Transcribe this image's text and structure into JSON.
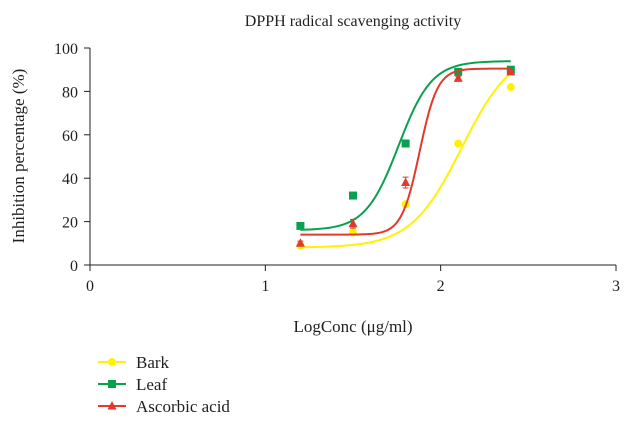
{
  "chart_data": {
    "type": "scatter",
    "title": "DPPH radical scavenging activity",
    "xlabel": "LogConc (μg/ml)",
    "ylabel": "Inhibition percentage (%)",
    "xlim": [
      0,
      3
    ],
    "ylim": [
      0,
      100
    ],
    "xticks": [
      "0",
      "1",
      "2",
      "3"
    ],
    "yticks": [
      "0",
      "20",
      "40",
      "60",
      "80",
      "100"
    ],
    "grid": false,
    "legend_position": "bottom-left",
    "series": [
      {
        "name": "Bark",
        "color": "#fff200",
        "marker": "circle",
        "x": [
          1.2,
          1.5,
          1.8,
          2.1,
          2.4
        ],
        "y": [
          9,
          15,
          28,
          56,
          82
        ],
        "error": [
          0.6,
          0.8,
          1.0,
          1.0,
          1.0
        ],
        "fit": {
          "bottom": 8,
          "top": 100,
          "ec50_log": 2.12,
          "hill": 3.0
        }
      },
      {
        "name": "Leaf",
        "color": "#0aa14e",
        "marker": "square",
        "x": [
          1.2,
          1.5,
          1.8,
          2.1,
          2.4
        ],
        "y": [
          18,
          32,
          56,
          89,
          90
        ],
        "error": [
          0.8,
          1.0,
          1.2,
          1.2,
          1.0
        ],
        "fit": {
          "bottom": 16,
          "top": 94,
          "ec50_log": 1.76,
          "hill": 4.6
        }
      },
      {
        "name": "Ascorbic acid",
        "color": "#e2392b",
        "marker": "triangle",
        "x": [
          1.2,
          1.5,
          1.8,
          2.1,
          2.4
        ],
        "y": [
          10,
          19,
          38,
          86,
          89
        ],
        "error": [
          1.0,
          2.0,
          2.5,
          1.0,
          1.0
        ],
        "fit": {
          "bottom": 14,
          "top": 90.5,
          "ec50_log": 1.88,
          "hill": 8.5
        }
      }
    ]
  }
}
